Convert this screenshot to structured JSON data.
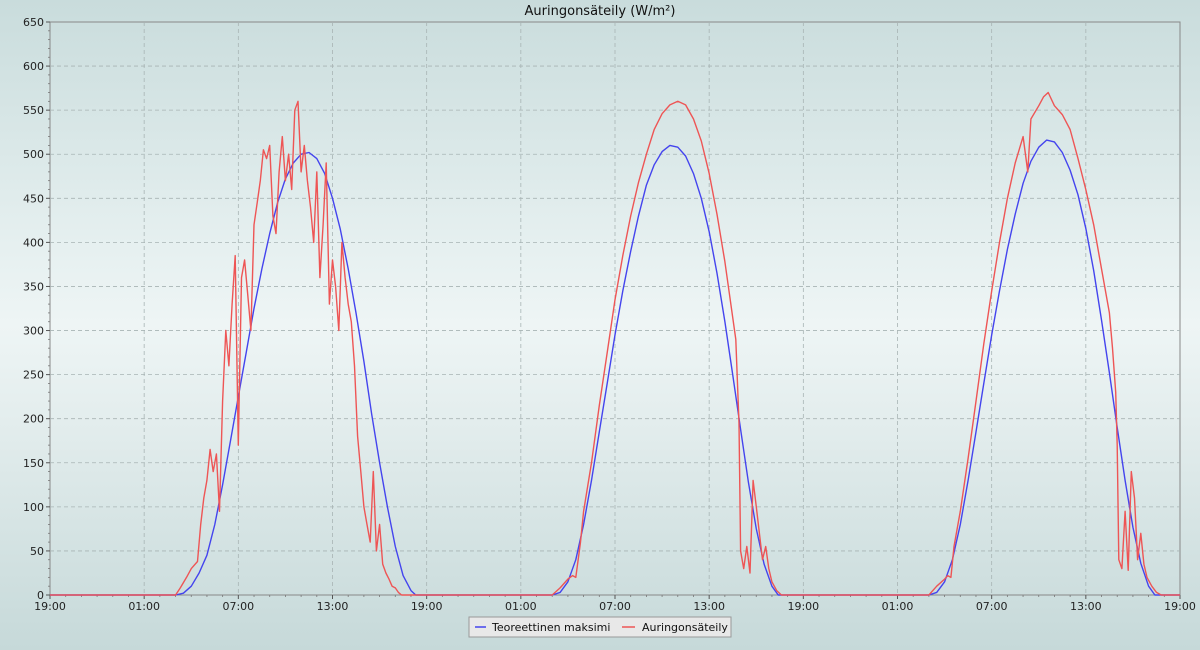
{
  "chart_data": {
    "type": "line",
    "title": "Auringonsäteily (W/m²)",
    "xlabel": "",
    "ylabel": "",
    "ylim": [
      0,
      650
    ],
    "yticks": [
      0,
      50,
      100,
      150,
      200,
      250,
      300,
      350,
      400,
      450,
      500,
      550,
      600,
      650
    ],
    "xlim": [
      0,
      72
    ],
    "xticks": [
      {
        "x": 0,
        "label": "19:00"
      },
      {
        "x": 6,
        "label": "01:00"
      },
      {
        "x": 12,
        "label": "07:00"
      },
      {
        "x": 18,
        "label": "13:00"
      },
      {
        "x": 24,
        "label": "19:00"
      },
      {
        "x": 30,
        "label": "01:00"
      },
      {
        "x": 36,
        "label": "07:00"
      },
      {
        "x": 42,
        "label": "13:00"
      },
      {
        "x": 48,
        "label": "19:00"
      },
      {
        "x": 54,
        "label": "01:00"
      },
      {
        "x": 60,
        "label": "07:00"
      },
      {
        "x": 66,
        "label": "13:00"
      },
      {
        "x": 72,
        "label": "19:00"
      }
    ],
    "grid": true,
    "legend_position": "bottom-center",
    "series": [
      {
        "name": "Teoreettinen maksimi",
        "color": "#4444ee",
        "points": [
          [
            0,
            0
          ],
          [
            8,
            0
          ],
          [
            8.5,
            2
          ],
          [
            9,
            10
          ],
          [
            9.5,
            25
          ],
          [
            10,
            45
          ],
          [
            10.5,
            80
          ],
          [
            11,
            125
          ],
          [
            11.5,
            175
          ],
          [
            12,
            225
          ],
          [
            12.5,
            275
          ],
          [
            13,
            325
          ],
          [
            13.5,
            370
          ],
          [
            14,
            410
          ],
          [
            14.5,
            445
          ],
          [
            15,
            472
          ],
          [
            15.5,
            490
          ],
          [
            16,
            500
          ],
          [
            16.5,
            502
          ],
          [
            17,
            495
          ],
          [
            17.5,
            478
          ],
          [
            18,
            450
          ],
          [
            18.5,
            415
          ],
          [
            19,
            370
          ],
          [
            19.5,
            320
          ],
          [
            20,
            265
          ],
          [
            20.5,
            205
          ],
          [
            21,
            150
          ],
          [
            21.5,
            100
          ],
          [
            22,
            55
          ],
          [
            22.5,
            22
          ],
          [
            23,
            5
          ],
          [
            23.3,
            0
          ],
          [
            32,
            0
          ],
          [
            32.5,
            3
          ],
          [
            33,
            15
          ],
          [
            33.5,
            40
          ],
          [
            34,
            80
          ],
          [
            34.5,
            130
          ],
          [
            35,
            185
          ],
          [
            35.5,
            240
          ],
          [
            36,
            295
          ],
          [
            36.5,
            345
          ],
          [
            37,
            390
          ],
          [
            37.5,
            430
          ],
          [
            38,
            465
          ],
          [
            38.5,
            488
          ],
          [
            39,
            503
          ],
          [
            39.5,
            510
          ],
          [
            40,
            508
          ],
          [
            40.5,
            498
          ],
          [
            41,
            478
          ],
          [
            41.5,
            450
          ],
          [
            42,
            412
          ],
          [
            42.5,
            365
          ],
          [
            43,
            310
          ],
          [
            43.5,
            250
          ],
          [
            44,
            188
          ],
          [
            44.5,
            128
          ],
          [
            45,
            75
          ],
          [
            45.5,
            35
          ],
          [
            46,
            10
          ],
          [
            46.4,
            0
          ],
          [
            56,
            0
          ],
          [
            56.5,
            3
          ],
          [
            57,
            15
          ],
          [
            57.5,
            40
          ],
          [
            58,
            80
          ],
          [
            58.5,
            130
          ],
          [
            59,
            185
          ],
          [
            59.5,
            240
          ],
          [
            60,
            295
          ],
          [
            60.5,
            345
          ],
          [
            61,
            392
          ],
          [
            61.5,
            432
          ],
          [
            62,
            467
          ],
          [
            62.5,
            492
          ],
          [
            63,
            508
          ],
          [
            63.5,
            516
          ],
          [
            64,
            514
          ],
          [
            64.5,
            502
          ],
          [
            65,
            482
          ],
          [
            65.5,
            454
          ],
          [
            66,
            416
          ],
          [
            66.5,
            368
          ],
          [
            67,
            312
          ],
          [
            67.5,
            252
          ],
          [
            68,
            190
          ],
          [
            68.5,
            130
          ],
          [
            69,
            77
          ],
          [
            69.5,
            36
          ],
          [
            70,
            10
          ],
          [
            70.4,
            0
          ],
          [
            72,
            0
          ]
        ]
      },
      {
        "name": "Auringonsäteily",
        "color": "#ee5555",
        "points": [
          [
            0,
            0
          ],
          [
            8,
            0
          ],
          [
            8.3,
            8
          ],
          [
            8.7,
            20
          ],
          [
            9,
            30
          ],
          [
            9.4,
            38
          ],
          [
            9.6,
            80
          ],
          [
            9.8,
            110
          ],
          [
            10,
            130
          ],
          [
            10.2,
            165
          ],
          [
            10.4,
            140
          ],
          [
            10.6,
            160
          ],
          [
            10.8,
            95
          ],
          [
            11,
            220
          ],
          [
            11.2,
            300
          ],
          [
            11.4,
            260
          ],
          [
            11.6,
            330
          ],
          [
            11.8,
            385
          ],
          [
            12,
            170
          ],
          [
            12.2,
            360
          ],
          [
            12.4,
            380
          ],
          [
            12.6,
            340
          ],
          [
            12.8,
            300
          ],
          [
            13,
            420
          ],
          [
            13.2,
            445
          ],
          [
            13.4,
            470
          ],
          [
            13.6,
            505
          ],
          [
            13.8,
            495
          ],
          [
            14,
            510
          ],
          [
            14.2,
            430
          ],
          [
            14.4,
            410
          ],
          [
            14.6,
            480
          ],
          [
            14.8,
            520
          ],
          [
            15,
            470
          ],
          [
            15.2,
            500
          ],
          [
            15.4,
            460
          ],
          [
            15.6,
            550
          ],
          [
            15.8,
            560
          ],
          [
            16,
            480
          ],
          [
            16.2,
            510
          ],
          [
            16.4,
            470
          ],
          [
            16.6,
            440
          ],
          [
            16.8,
            400
          ],
          [
            17,
            480
          ],
          [
            17.2,
            360
          ],
          [
            17.4,
            420
          ],
          [
            17.6,
            490
          ],
          [
            17.8,
            330
          ],
          [
            18,
            380
          ],
          [
            18.2,
            350
          ],
          [
            18.4,
            300
          ],
          [
            18.6,
            400
          ],
          [
            18.8,
            360
          ],
          [
            19,
            330
          ],
          [
            19.2,
            310
          ],
          [
            19.4,
            260
          ],
          [
            19.6,
            180
          ],
          [
            19.8,
            140
          ],
          [
            20,
            100
          ],
          [
            20.2,
            80
          ],
          [
            20.4,
            60
          ],
          [
            20.6,
            140
          ],
          [
            20.8,
            50
          ],
          [
            21,
            80
          ],
          [
            21.2,
            35
          ],
          [
            21.4,
            25
          ],
          [
            21.6,
            18
          ],
          [
            21.8,
            10
          ],
          [
            22,
            8
          ],
          [
            22.2,
            3
          ],
          [
            22.4,
            0
          ],
          [
            32,
            0
          ],
          [
            32.5,
            8
          ],
          [
            33,
            18
          ],
          [
            33.3,
            22
          ],
          [
            33.5,
            20
          ],
          [
            33.8,
            60
          ],
          [
            34,
            95
          ],
          [
            34.5,
            150
          ],
          [
            35,
            215
          ],
          [
            35.5,
            275
          ],
          [
            36,
            335
          ],
          [
            36.5,
            385
          ],
          [
            37,
            430
          ],
          [
            37.5,
            468
          ],
          [
            38,
            500
          ],
          [
            38.5,
            528
          ],
          [
            39,
            546
          ],
          [
            39.5,
            556
          ],
          [
            40,
            560
          ],
          [
            40.5,
            556
          ],
          [
            41,
            540
          ],
          [
            41.5,
            515
          ],
          [
            42,
            478
          ],
          [
            42.5,
            432
          ],
          [
            43,
            378
          ],
          [
            43.5,
            315
          ],
          [
            43.7,
            290
          ],
          [
            43.9,
            195
          ],
          [
            44,
            50
          ],
          [
            44.2,
            30
          ],
          [
            44.4,
            55
          ],
          [
            44.6,
            25
          ],
          [
            44.8,
            130
          ],
          [
            45,
            100
          ],
          [
            45.2,
            70
          ],
          [
            45.4,
            40
          ],
          [
            45.6,
            55
          ],
          [
            45.8,
            30
          ],
          [
            46,
            15
          ],
          [
            46.3,
            5
          ],
          [
            46.6,
            0
          ],
          [
            56,
            0
          ],
          [
            56.5,
            10
          ],
          [
            57,
            18
          ],
          [
            57.2,
            22
          ],
          [
            57.4,
            20
          ],
          [
            57.6,
            55
          ],
          [
            58,
            95
          ],
          [
            58.5,
            155
          ],
          [
            59,
            220
          ],
          [
            59.5,
            285
          ],
          [
            60,
            345
          ],
          [
            60.5,
            400
          ],
          [
            61,
            450
          ],
          [
            61.5,
            490
          ],
          [
            62,
            520
          ],
          [
            62.3,
            480
          ],
          [
            62.5,
            540
          ],
          [
            63,
            555
          ],
          [
            63.3,
            565
          ],
          [
            63.6,
            570
          ],
          [
            64,
            555
          ],
          [
            64.5,
            545
          ],
          [
            65,
            528
          ],
          [
            65.5,
            495
          ],
          [
            66,
            460
          ],
          [
            66.5,
            420
          ],
          [
            67,
            370
          ],
          [
            67.5,
            320
          ],
          [
            67.7,
            280
          ],
          [
            67.9,
            230
          ],
          [
            68,
            170
          ],
          [
            68.1,
            40
          ],
          [
            68.3,
            30
          ],
          [
            68.5,
            95
          ],
          [
            68.7,
            28
          ],
          [
            68.9,
            140
          ],
          [
            69.1,
            110
          ],
          [
            69.3,
            40
          ],
          [
            69.5,
            70
          ],
          [
            69.7,
            35
          ],
          [
            69.9,
            20
          ],
          [
            70.2,
            10
          ],
          [
            70.5,
            3
          ],
          [
            70.8,
            0
          ],
          [
            72,
            0
          ]
        ]
      }
    ]
  }
}
